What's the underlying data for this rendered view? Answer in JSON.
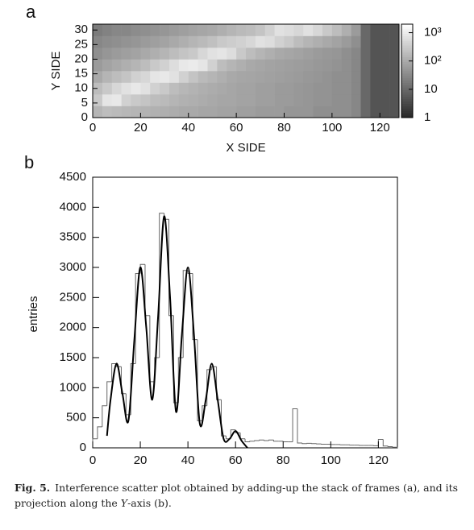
{
  "chart_data": [
    {
      "type": "heatmap",
      "panel_label": "a",
      "x_label": "X SIDE",
      "y_label": "Y SIDE",
      "x_bins": [
        0,
        4,
        8,
        12,
        16,
        20,
        24,
        28,
        32,
        36,
        40,
        44,
        48,
        52,
        56,
        60,
        64,
        68,
        72,
        76,
        80,
        84,
        88,
        92,
        96,
        100,
        104,
        108,
        112,
        116,
        120,
        124,
        128
      ],
      "y_bins": [
        0,
        4,
        8,
        12,
        16,
        20,
        24,
        28,
        32
      ],
      "values": [
        [
          150,
          200,
          180,
          160,
          150,
          140,
          130,
          120,
          110,
          100,
          100,
          90,
          90,
          80,
          80,
          70,
          70,
          60,
          60,
          60,
          50,
          50,
          50,
          40,
          40,
          40,
          40,
          30,
          10,
          5,
          5,
          5
        ],
        [
          300,
          800,
          900,
          400,
          300,
          250,
          200,
          180,
          150,
          130,
          120,
          110,
          100,
          90,
          90,
          80,
          80,
          70,
          70,
          60,
          60,
          55,
          50,
          45,
          45,
          40,
          40,
          30,
          10,
          5,
          5,
          5
        ],
        [
          200,
          300,
          500,
          700,
          900,
          700,
          400,
          300,
          200,
          160,
          140,
          120,
          110,
          100,
          90,
          80,
          80,
          70,
          70,
          60,
          60,
          55,
          50,
          45,
          45,
          40,
          40,
          30,
          10,
          5,
          5,
          5
        ],
        [
          100,
          150,
          200,
          250,
          400,
          500,
          800,
          900,
          700,
          400,
          250,
          180,
          150,
          120,
          100,
          90,
          85,
          80,
          75,
          70,
          65,
          60,
          55,
          50,
          45,
          40,
          40,
          30,
          10,
          5,
          5,
          5
        ],
        [
          60,
          80,
          100,
          120,
          150,
          200,
          300,
          400,
          600,
          900,
          1000,
          800,
          400,
          200,
          150,
          120,
          100,
          90,
          80,
          75,
          70,
          65,
          60,
          55,
          50,
          45,
          40,
          30,
          10,
          5,
          5,
          5
        ],
        [
          40,
          50,
          60,
          70,
          80,
          100,
          120,
          150,
          200,
          250,
          300,
          500,
          700,
          800,
          600,
          300,
          200,
          150,
          120,
          100,
          90,
          80,
          70,
          60,
          55,
          50,
          40,
          30,
          10,
          5,
          5,
          5
        ],
        [
          30,
          35,
          40,
          45,
          50,
          60,
          70,
          80,
          100,
          120,
          150,
          180,
          220,
          300,
          350,
          400,
          500,
          700,
          600,
          400,
          300,
          200,
          150,
          120,
          100,
          80,
          60,
          40,
          10,
          5,
          5,
          5
        ],
        [
          20,
          25,
          30,
          30,
          35,
          40,
          45,
          50,
          60,
          70,
          80,
          90,
          100,
          120,
          150,
          180,
          200,
          250,
          400,
          700,
          600,
          500,
          700,
          500,
          300,
          200,
          120,
          60,
          10,
          5,
          5,
          5
        ]
      ],
      "xlim": [
        0,
        128
      ],
      "ylim": [
        0,
        32
      ],
      "xticks": [
        0,
        20,
        40,
        60,
        80,
        100,
        120
      ],
      "yticks": [
        0,
        5,
        10,
        15,
        20,
        25,
        30
      ],
      "zlim": [
        1,
        2000
      ],
      "log_z": true,
      "zticks": [
        1,
        10,
        {
          "value": 100,
          "label": "10²"
        },
        {
          "value": 1000,
          "label": "10³"
        }
      ],
      "colormap": [
        "#262626",
        "#ffffff"
      ]
    },
    {
      "type": "histogram",
      "panel_label": "b",
      "y_label": "entries",
      "bins": [
        0,
        2,
        4,
        6,
        8,
        10,
        12,
        14,
        16,
        18,
        20,
        22,
        24,
        26,
        28,
        30,
        32,
        34,
        36,
        38,
        40,
        42,
        44,
        46,
        48,
        50,
        52,
        54,
        56,
        58,
        60,
        62,
        64,
        66,
        68,
        70,
        72,
        74,
        76,
        78,
        80,
        82,
        84,
        86,
        88,
        90,
        92,
        94,
        96,
        98,
        100,
        102,
        104,
        106,
        108,
        110,
        112,
        114,
        116,
        118,
        120,
        122,
        124,
        126,
        128
      ],
      "counts": [
        150,
        350,
        700,
        1100,
        1400,
        1350,
        900,
        550,
        1400,
        2900,
        3050,
        2200,
        1100,
        1500,
        3900,
        3800,
        2200,
        750,
        1500,
        2950,
        2900,
        1800,
        450,
        700,
        1300,
        1350,
        800,
        200,
        150,
        300,
        250,
        150,
        100,
        110,
        120,
        130,
        120,
        130,
        110,
        110,
        100,
        100,
        650,
        80,
        70,
        75,
        70,
        65,
        60,
        60,
        55,
        55,
        50,
        50,
        45,
        45,
        40,
        40,
        40,
        35,
        140,
        30,
        20,
        10
      ],
      "color": "#666666",
      "fit": {
        "color": "#000000",
        "x": [
          6,
          7.5,
          10,
          12.5,
          15,
          17.5,
          20,
          22.5,
          25,
          27.5,
          30,
          32.5,
          35,
          37.5,
          40,
          42.5,
          45,
          47.5,
          50,
          52.5,
          55,
          57.5,
          60,
          62.5,
          65
        ],
        "y": [
          200,
          800,
          1400,
          900,
          450,
          1800,
          3000,
          2000,
          800,
          2200,
          3850,
          2500,
          600,
          1900,
          3000,
          1900,
          400,
          800,
          1400,
          800,
          150,
          150,
          280,
          120,
          0
        ]
      },
      "xlim": [
        0,
        128
      ],
      "ylim": [
        0,
        4500
      ],
      "xticks": [
        0,
        20,
        40,
        60,
        80,
        100,
        120
      ],
      "yticks": [
        0,
        500,
        1000,
        1500,
        2000,
        2500,
        3000,
        3500,
        4000,
        4500
      ]
    }
  ],
  "caption": {
    "label": "Fig. 5.",
    "text_1": "Interference scatter plot obtained by adding-up the stack of frames (a), and its projection along the ",
    "italic": "Y",
    "text_2": "-axis (b)."
  }
}
